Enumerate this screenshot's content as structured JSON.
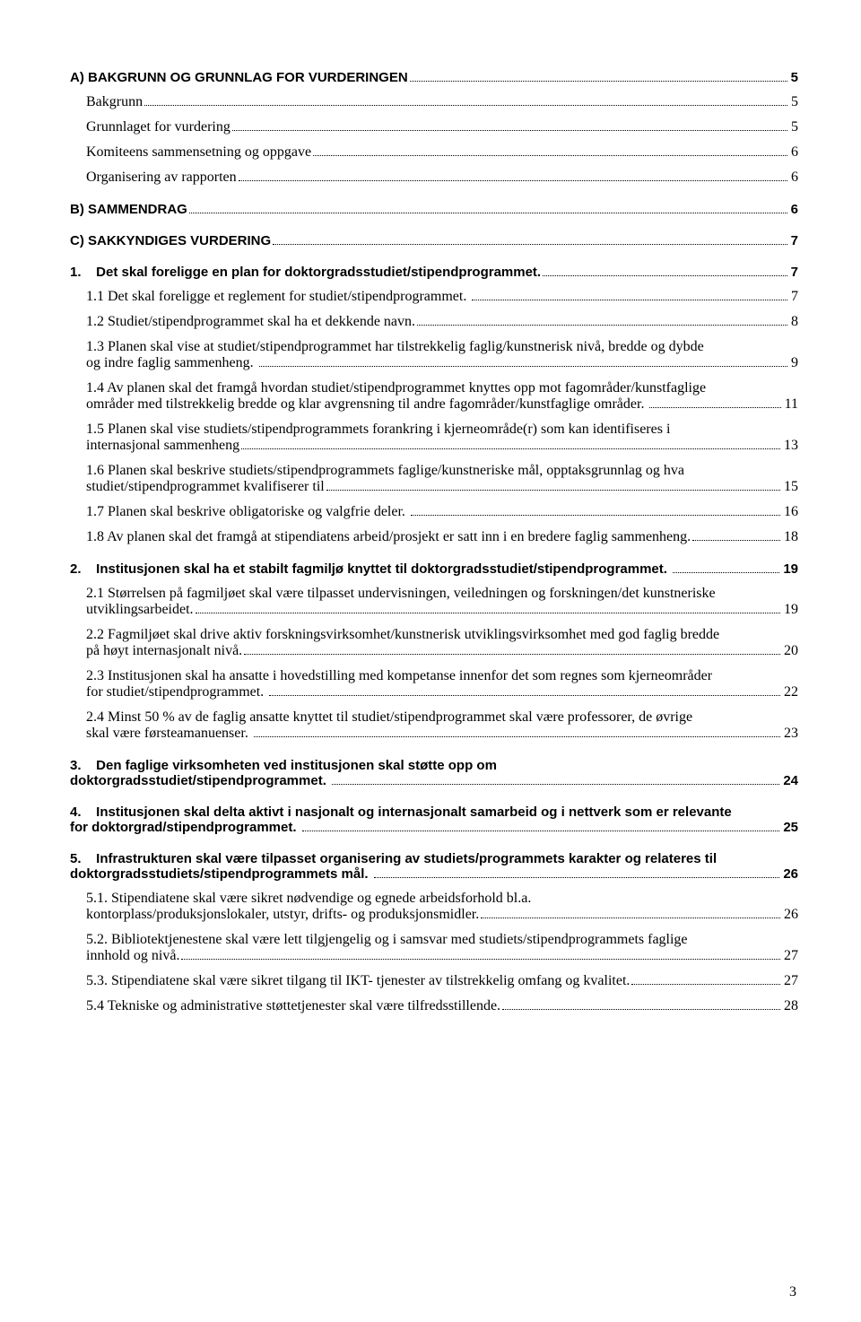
{
  "page_number": "3",
  "toc": [
    {
      "type": "bold",
      "label": "A) BAKGRUNN OG GRUNNLAG FOR VURDERINGEN",
      "page": "5",
      "indent": 0,
      "multiline": false
    },
    {
      "type": "sub",
      "label": "Bakgrunn",
      "page": "5",
      "indent": 1,
      "multiline": false
    },
    {
      "type": "sub",
      "label": "Grunnlaget for vurdering",
      "page": "5",
      "indent": 1,
      "multiline": false
    },
    {
      "type": "sub",
      "label": "Komiteens sammensetning og oppgave",
      "page": "6",
      "indent": 1,
      "multiline": false
    },
    {
      "type": "sub",
      "label": "Organisering av rapporten",
      "page": "6",
      "indent": 1,
      "multiline": false
    },
    {
      "type": "bold",
      "label": "B) SAMMENDRAG",
      "page": "6",
      "indent": 0,
      "multiline": false
    },
    {
      "type": "bold",
      "label": "C) SAKKYNDIGES VURDERING",
      "page": "7",
      "indent": 0,
      "multiline": false
    },
    {
      "type": "bold",
      "label": "1.    Det skal foreligge en plan for doktorgradsstudiet/stipendprogrammet.",
      "page": "7",
      "indent": 0,
      "multiline": false
    },
    {
      "type": "sub",
      "label": "1.1 Det skal foreligge et reglement for studiet/stipendprogrammet. ",
      "page": "7",
      "indent": 1,
      "multiline": false
    },
    {
      "type": "sub",
      "label": "1.2 Studiet/stipendprogrammet skal ha et dekkende navn.",
      "page": "8",
      "indent": 1,
      "multiline": false
    },
    {
      "type": "sub",
      "label_first": "1.3 Planen skal vise at studiet/stipendprogrammet har tilstrekkelig faglig/kunstnerisk nivå, bredde og dybde",
      "label_rest": "og indre faglig sammenheng. ",
      "page": "9",
      "indent": 1,
      "multiline": true
    },
    {
      "type": "sub",
      "label_first": "1.4 Av planen skal det framgå hvordan studiet/stipendprogrammet knyttes opp mot fagområder/kunstfaglige",
      "label_rest": "områder med tilstrekkelig bredde og klar avgrensning til andre fagområder/kunstfaglige områder. ",
      "page": "11",
      "indent": 1,
      "multiline": true
    },
    {
      "type": "sub",
      "label_first": "1.5 Planen skal vise studiets/stipendprogrammets forankring i kjerneområde(r) som kan identifiseres i",
      "label_rest": "internasjonal sammenheng",
      "page": "13",
      "indent": 1,
      "multiline": true
    },
    {
      "type": "sub",
      "label_first": "1.6 Planen skal beskrive studiets/stipendprogrammets faglige/kunstneriske mål, opptaksgrunnlag og hva",
      "label_rest": "studiet/stipendprogrammet kvalifiserer til",
      "page": "15",
      "indent": 1,
      "multiline": true
    },
    {
      "type": "sub",
      "label": "1.7 Planen skal beskrive obligatoriske og valgfrie deler. ",
      "page": "16",
      "indent": 1,
      "multiline": false
    },
    {
      "type": "sub",
      "label": "1.8 Av planen skal det framgå at stipendiatens arbeid/prosjekt er satt inn i en bredere faglig sammenheng.",
      "page": "18",
      "indent": 1,
      "multiline": false
    },
    {
      "type": "bold",
      "label": "2.    Institusjonen skal ha et stabilt fagmiljø knyttet til doktorgradsstudiet/stipendprogrammet. ",
      "page": "19",
      "indent": 0,
      "multiline": false
    },
    {
      "type": "sub",
      "label_first": "2.1 Størrelsen på fagmiljøet skal være tilpasset undervisningen, veiledningen og forskningen/det kunstneriske",
      "label_rest": "utviklingsarbeidet.",
      "page": "19",
      "indent": 1,
      "multiline": true
    },
    {
      "type": "sub",
      "label_first": "2.2 Fagmiljøet skal drive aktiv forskningsvirksomhet/kunstnerisk utviklingsvirksomhet med god faglig bredde",
      "label_rest": "på høyt internasjonalt nivå.",
      "page": "20",
      "indent": 1,
      "multiline": true
    },
    {
      "type": "sub",
      "label_first": "2.3 Institusjonen skal ha ansatte i hovedstilling med kompetanse innenfor det som regnes som kjerneområder",
      "label_rest": "for studiet/stipendprogrammet. ",
      "page": "22",
      "indent": 1,
      "multiline": true
    },
    {
      "type": "sub",
      "label_first": "2.4 Minst 50 % av de faglig ansatte knyttet til studiet/stipendprogrammet skal være professorer, de øvrige",
      "label_rest": "skal være førsteamanuenser. ",
      "page": "23",
      "indent": 1,
      "multiline": true
    },
    {
      "type": "bold",
      "label_first": "3.    Den faglige virksomheten ved institusjonen skal støtte opp om",
      "label_rest": "doktorgradsstudiet/stipendprogrammet. ",
      "page": "24",
      "indent": 0,
      "multiline": true
    },
    {
      "type": "bold",
      "label_first": "4.    Institusjonen skal delta aktivt i nasjonalt og internasjonalt samarbeid og i nettverk som er relevante",
      "label_rest": "for doktorgrad/stipendprogrammet. ",
      "page": "25",
      "indent": 0,
      "multiline": true
    },
    {
      "type": "bold",
      "label_first": "5.    Infrastrukturen skal være tilpasset organisering av studiets/programmets karakter og relateres til",
      "label_rest": "doktorgradsstudiets/stipendprogrammets mål. ",
      "page": "26",
      "indent": 0,
      "multiline": true
    },
    {
      "type": "sub",
      "label_first": "5.1. Stipendiatene skal være sikret nødvendige og egnede arbeidsforhold bl.a.",
      "label_rest": "kontorplass/produksjonslokaler, utstyr, drifts- og produksjonsmidler.",
      "page": "26",
      "indent": 1,
      "multiline": true
    },
    {
      "type": "sub",
      "label_first": "5.2. Bibliotektjenestene skal være lett tilgjengelig og i samsvar med studiets/stipendprogrammets faglige",
      "label_rest": "innhold og nivå.",
      "page": "27",
      "indent": 1,
      "multiline": true
    },
    {
      "type": "sub",
      "label": "5.3. Stipendiatene skal være sikret tilgang til IKT- tjenester av tilstrekkelig omfang og kvalitet.",
      "page": "27",
      "indent": 1,
      "multiline": false
    },
    {
      "type": "sub",
      "label": "5.4 Tekniske og administrative støttetjenester skal være tilfredsstillende.",
      "page": "28",
      "indent": 1,
      "multiline": false
    }
  ]
}
